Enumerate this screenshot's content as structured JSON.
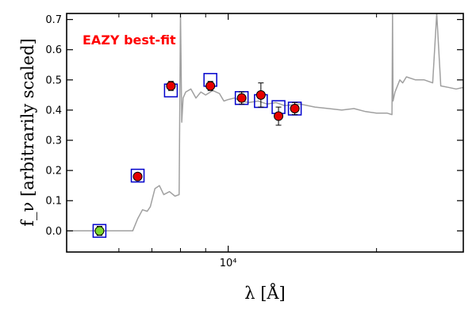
{
  "chart_data": {
    "type": "scatter",
    "title": "",
    "annotation": "EAZY best-fit",
    "xlabel": "λ [Å]",
    "ylabel": "f_ν [arbitrarily scaled]",
    "xscale": "log",
    "xlim": [
      4700,
      30000
    ],
    "ylim": [
      -0.07,
      0.72
    ],
    "yticks": [
      0.0,
      0.1,
      0.2,
      0.3,
      0.4,
      0.5,
      0.6,
      0.7
    ],
    "ytick_labels": [
      "0.0",
      "0.1",
      "0.2",
      "0.3",
      "0.4",
      "0.5",
      "0.6",
      "0.7"
    ],
    "xticks_major": [
      10000
    ],
    "xtick_labels": [
      "10⁴"
    ],
    "xticks_minor": [
      6000,
      7000,
      8000,
      9000,
      20000
    ],
    "grid": false,
    "colors": {
      "template": "#a0a0a0",
      "model": "#0000cc",
      "detection": "#e60000",
      "non_detection": "#7cd92c",
      "annotation": "#ff0000"
    },
    "series": [
      {
        "role": "template",
        "x": [
          4700,
          6400,
          6550,
          6700,
          6850,
          6950,
          7100,
          7250,
          7400,
          7600,
          7800,
          7950,
          8000,
          8050,
          8100,
          8200,
          8400,
          8600,
          8800,
          9000,
          9300,
          9600,
          9800,
          10000,
          10300,
          10600,
          11000,
          11500,
          12000,
          12500,
          13000,
          14000,
          15000,
          16000,
          17000,
          18000,
          19000,
          20000,
          21000,
          21500,
          21550,
          21600,
          21800,
          22300,
          22600,
          23000,
          24000,
          25000,
          26000,
          26500,
          27000,
          28000,
          29000,
          30000
        ],
        "y": [
          0.0,
          0.0,
          0.04,
          0.07,
          0.065,
          0.08,
          0.14,
          0.15,
          0.12,
          0.13,
          0.115,
          0.12,
          0.72,
          0.36,
          0.44,
          0.46,
          0.47,
          0.44,
          0.46,
          0.45,
          0.465,
          0.455,
          0.43,
          0.435,
          0.44,
          0.43,
          0.425,
          0.43,
          0.42,
          0.425,
          0.415,
          0.42,
          0.41,
          0.405,
          0.4,
          0.405,
          0.395,
          0.39,
          0.39,
          0.385,
          0.72,
          0.43,
          0.46,
          0.5,
          0.49,
          0.51,
          0.5,
          0.5,
          0.49,
          0.72,
          0.48,
          0.475,
          0.47,
          0.475
        ]
      },
      {
        "role": "model",
        "x": [
          5480,
          6550,
          7650,
          9200,
          10650,
          11650,
          12650,
          13650
        ],
        "y": [
          0.0,
          0.183,
          0.465,
          0.5,
          0.44,
          0.43,
          0.41,
          0.405
        ]
      },
      {
        "role": "observed",
        "x": [
          5480,
          6550,
          7650,
          9200,
          10650,
          11650,
          12650,
          13650
        ],
        "y": [
          0.0,
          0.18,
          0.48,
          0.48,
          0.44,
          0.45,
          0.38,
          0.405
        ],
        "yerr": [
          0.015,
          0.01,
          0.015,
          0.015,
          0.02,
          0.04,
          0.03,
          0.02
        ],
        "non_detection": [
          true,
          false,
          false,
          false,
          false,
          false,
          false,
          false
        ]
      }
    ]
  }
}
